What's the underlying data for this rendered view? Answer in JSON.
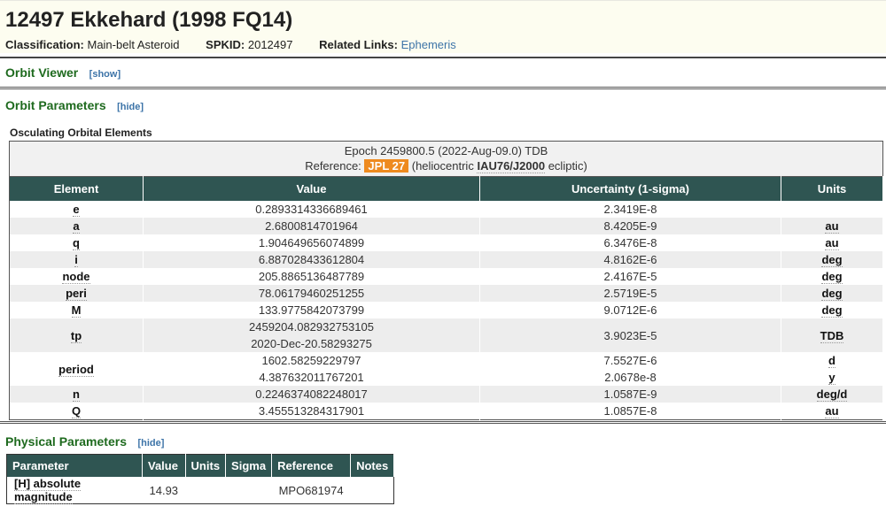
{
  "header": {
    "title": "12497 Ekkehard (1998 FQ14)",
    "classification_label": "Classification:",
    "classification": "Main-belt Asteroid",
    "spkid_label": "SPKID:",
    "spkid": "2012497",
    "links_label": "Related Links:",
    "ephemeris_link": "Ephemeris"
  },
  "orbit_viewer": {
    "title": "Orbit Viewer",
    "toggle": "[show]"
  },
  "orbit_params": {
    "title": "Orbit Parameters",
    "toggle": "[hide]",
    "subtitle": "Osculating Orbital Elements",
    "epoch": "Epoch 2459800.5 (2022-Aug-09.0) TDB",
    "reference_label": "Reference:",
    "reference": "JPL 27",
    "frame_prefix": "(heliocentric",
    "frame": "IAU76/J2000",
    "frame_suffix": "ecliptic)",
    "reference_color": "#ee8a1f",
    "columns": [
      "Element",
      "Value",
      "Uncertainty (1-sigma)",
      "Units"
    ],
    "rows": [
      {
        "element": "e",
        "values": [
          "0.2893314336689461"
        ],
        "sigmas": [
          "2.3419E-8"
        ],
        "units": [
          ""
        ]
      },
      {
        "element": "a",
        "values": [
          "2.6800814701964"
        ],
        "sigmas": [
          "8.4205E-9"
        ],
        "units": [
          "au"
        ]
      },
      {
        "element": "q",
        "values": [
          "1.904649656074899"
        ],
        "sigmas": [
          "6.3476E-8"
        ],
        "units": [
          "au"
        ]
      },
      {
        "element": "i",
        "values": [
          "6.887028433612804"
        ],
        "sigmas": [
          "4.8162E-6"
        ],
        "units": [
          "deg"
        ]
      },
      {
        "element": "node",
        "values": [
          "205.8865136487789"
        ],
        "sigmas": [
          "2.4167E-5"
        ],
        "units": [
          "deg"
        ]
      },
      {
        "element": "peri",
        "values": [
          "78.06179460251255"
        ],
        "sigmas": [
          "2.5719E-5"
        ],
        "units": [
          "deg"
        ]
      },
      {
        "element": "M",
        "values": [
          "133.9775842073799"
        ],
        "sigmas": [
          "9.0712E-6"
        ],
        "units": [
          "deg"
        ]
      },
      {
        "element": "tp",
        "values": [
          "2459204.082932753105",
          "2020-Dec-20.58293275"
        ],
        "sigmas": [
          "3.9023E-5"
        ],
        "units": [
          "TDB"
        ]
      },
      {
        "element": "period",
        "values": [
          "1602.58259229797",
          "4.387632011767201"
        ],
        "sigmas": [
          "7.5527E-6",
          "2.0678e-8"
        ],
        "units": [
          "d",
          "y"
        ]
      },
      {
        "element": "n",
        "values": [
          "0.2246374082248017"
        ],
        "sigmas": [
          "1.0587E-9"
        ],
        "units": [
          "deg/d"
        ]
      },
      {
        "element": "Q",
        "values": [
          "3.455513284317901"
        ],
        "sigmas": [
          "1.0857E-8"
        ],
        "units": [
          "au"
        ]
      }
    ]
  },
  "physical_params": {
    "title": "Physical Parameters",
    "toggle": "[hide]",
    "columns": [
      "Parameter",
      "Value",
      "Units",
      "Sigma",
      "Reference",
      "Notes"
    ],
    "rows": [
      {
        "parameter": "[H] absolute magnitude",
        "value": "14.93",
        "units": "",
        "sigma": "",
        "reference": "MPO681974",
        "notes": ""
      }
    ]
  }
}
